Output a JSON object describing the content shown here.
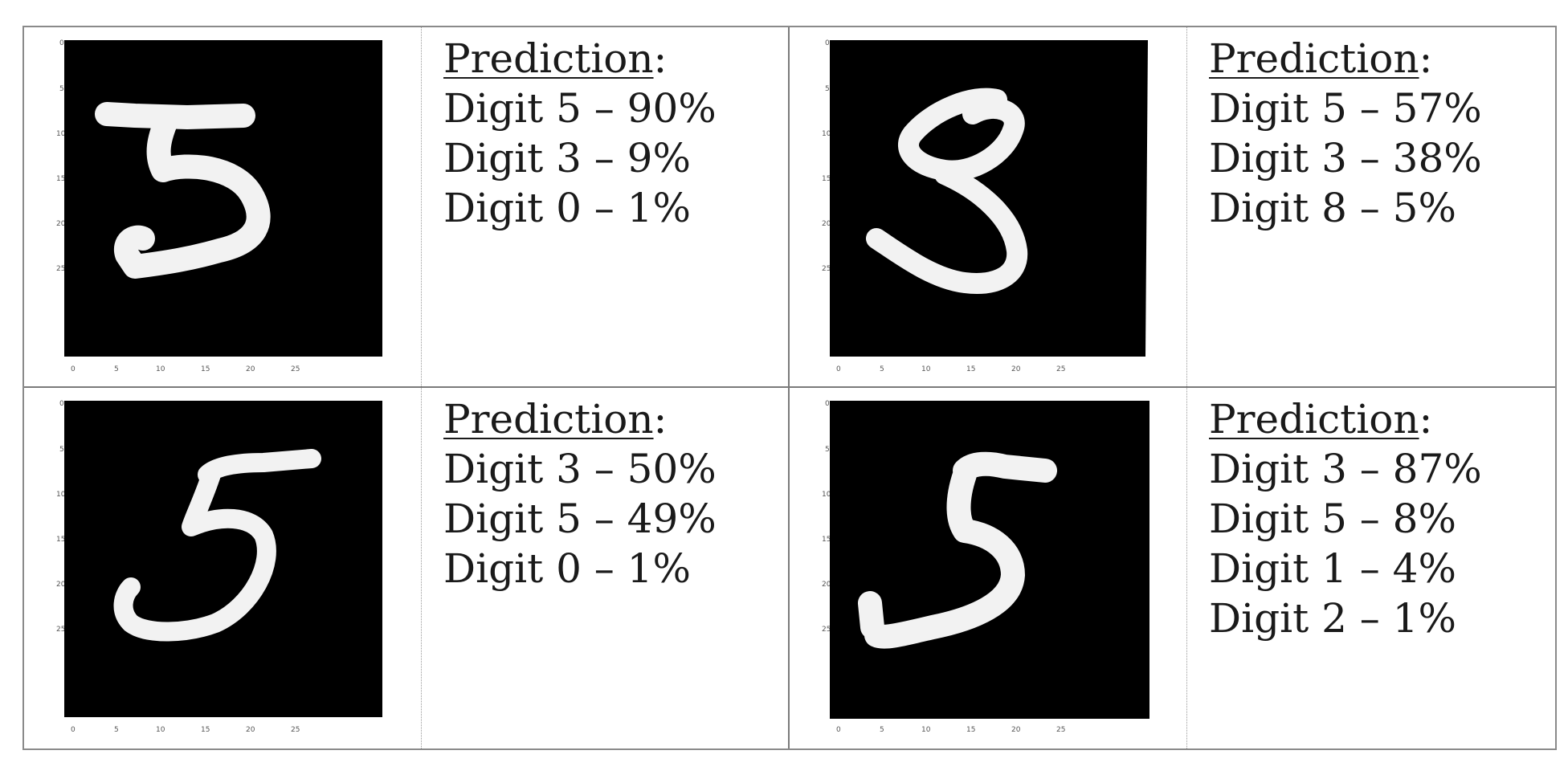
{
  "panels": [
    {
      "digit_shown": "5",
      "title": "Prediction",
      "title_suffix": ":",
      "lines": [
        "Digit 5 – 90%",
        "Digit 3 – 9%",
        "Digit 0 – 1%"
      ],
      "x_ticks": [
        "0",
        "5",
        "10",
        "15",
        "20",
        "25"
      ],
      "y_ticks": [
        "0",
        "5",
        "10",
        "15",
        "20",
        "25"
      ]
    },
    {
      "digit_shown": "8",
      "title": "Prediction",
      "title_suffix": ":",
      "lines": [
        "Digit 5 – 57%",
        "Digit 3 – 38%",
        "Digit 8 – 5%"
      ],
      "x_ticks": [
        "0",
        "5",
        "10",
        "15",
        "20",
        "25"
      ],
      "y_ticks": [
        "0",
        "5",
        "10",
        "15",
        "20",
        "25"
      ]
    },
    {
      "digit_shown": "5",
      "title": "Prediction",
      "title_suffix": ":",
      "lines": [
        "Digit 3 – 50%",
        "Digit 5 – 49%",
        "Digit 0 – 1%"
      ],
      "x_ticks": [
        "0",
        "5",
        "10",
        "15",
        "20",
        "25"
      ],
      "y_ticks": [
        "0",
        "5",
        "10",
        "15",
        "20",
        "25"
      ]
    },
    {
      "digit_shown": "5",
      "title": "Prediction",
      "title_suffix": ":",
      "lines": [
        "Digit 3 – 87%",
        "Digit 5 – 8%",
        "Digit 1 – 4%",
        "Digit 2 – 1%"
      ],
      "x_ticks": [
        "0",
        "5",
        "10",
        "15",
        "20",
        "25"
      ],
      "y_ticks": [
        "0",
        "5",
        "10",
        "15",
        "20",
        "25"
      ]
    }
  ],
  "colors": {
    "image_bg": "#000000",
    "stroke": "#f2f2f2",
    "text": "#1a1a1a",
    "border": "#8a8a8a"
  }
}
